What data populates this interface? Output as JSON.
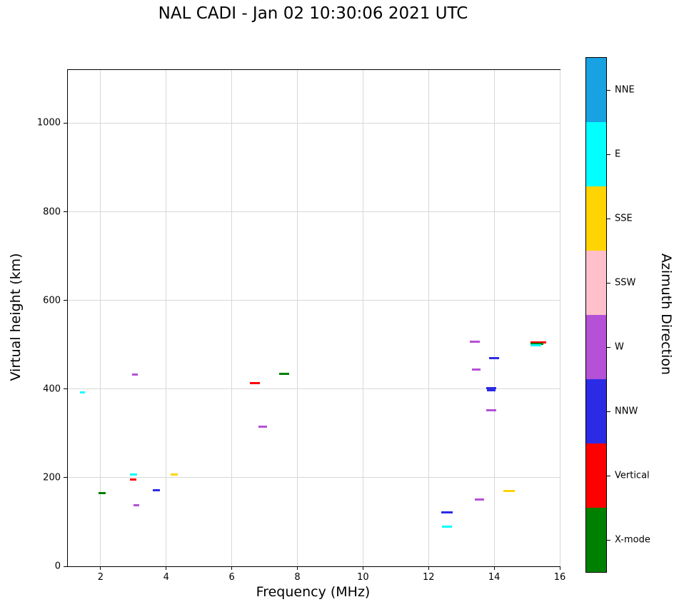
{
  "title": "NAL CADI - Jan 02 10:30:06 2021 UTC",
  "chart_data": {
    "type": "scatter",
    "marker": "horizontal-dash",
    "title": "NAL CADI - Jan 02 10:30:06 2021 UTC",
    "xlabel": "Frequency (MHz)",
    "ylabel": "Virtual height (km)",
    "colorbar_label": "Azimuth Direction",
    "xlim": [
      1,
      16
    ],
    "ylim": [
      0,
      1120
    ],
    "xticks": [
      2,
      4,
      6,
      8,
      10,
      12,
      14,
      16
    ],
    "yticks": [
      0,
      200,
      400,
      600,
      800,
      1000
    ],
    "grid": true,
    "grid_color": "#d8d8d8",
    "colorbar": [
      {
        "label": "NNE",
        "color": "#18a2e2"
      },
      {
        "label": "E",
        "color": "#00ffff"
      },
      {
        "label": "SSE",
        "color": "#ffd400"
      },
      {
        "label": "SSW",
        "color": "#ffc0cb"
      },
      {
        "label": "W",
        "color": "#b451d6"
      },
      {
        "label": "NNW",
        "color": "#2b2be6"
      },
      {
        "label": "Vertical",
        "color": "#ff0000"
      },
      {
        "label": "X-mode",
        "color": "#008000"
      }
    ],
    "points": [
      {
        "freq_mhz": 1.45,
        "height_km": 393,
        "direction": "E",
        "w": 7
      },
      {
        "freq_mhz": 2.05,
        "height_km": 165,
        "direction": "X-mode",
        "w": 10
      },
      {
        "freq_mhz": 3.0,
        "height_km": 207,
        "direction": "E",
        "w": 10
      },
      {
        "freq_mhz": 3.0,
        "height_km": 196,
        "direction": "Vertical",
        "w": 9
      },
      {
        "freq_mhz": 3.05,
        "height_km": 433,
        "direction": "W",
        "w": 8
      },
      {
        "freq_mhz": 3.1,
        "height_km": 138,
        "direction": "W",
        "w": 8
      },
      {
        "freq_mhz": 3.7,
        "height_km": 172,
        "direction": "NNW",
        "w": 10
      },
      {
        "freq_mhz": 4.25,
        "height_km": 207,
        "direction": "SSE",
        "w": 10
      },
      {
        "freq_mhz": 6.7,
        "height_km": 413,
        "direction": "Vertical",
        "w": 14
      },
      {
        "freq_mhz": 6.95,
        "height_km": 315,
        "direction": "W",
        "w": 12
      },
      {
        "freq_mhz": 7.6,
        "height_km": 435,
        "direction": "X-mode",
        "w": 14
      },
      {
        "freq_mhz": 12.55,
        "height_km": 122,
        "direction": "NNW",
        "w": 16
      },
      {
        "freq_mhz": 12.55,
        "height_km": 90,
        "direction": "E",
        "w": 14
      },
      {
        "freq_mhz": 13.4,
        "height_km": 507,
        "direction": "W",
        "w": 14
      },
      {
        "freq_mhz": 13.45,
        "height_km": 444,
        "direction": "W",
        "w": 12
      },
      {
        "freq_mhz": 13.55,
        "height_km": 150,
        "direction": "W",
        "w": 13
      },
      {
        "freq_mhz": 14.0,
        "height_km": 470,
        "direction": "NNW",
        "w": 14
      },
      {
        "freq_mhz": 13.9,
        "height_km": 402,
        "direction": "NNW",
        "w": 14
      },
      {
        "freq_mhz": 13.9,
        "height_km": 398,
        "direction": "NNW",
        "w": 12
      },
      {
        "freq_mhz": 13.9,
        "height_km": 352,
        "direction": "W",
        "w": 14
      },
      {
        "freq_mhz": 14.45,
        "height_km": 170,
        "direction": "SSE",
        "w": 16
      },
      {
        "freq_mhz": 15.35,
        "height_km": 506,
        "direction": "Vertical",
        "w": 22
      },
      {
        "freq_mhz": 15.3,
        "height_km": 502,
        "direction": "X-mode",
        "w": 18
      },
      {
        "freq_mhz": 15.28,
        "height_km": 499,
        "direction": "E",
        "w": 15
      }
    ]
  }
}
